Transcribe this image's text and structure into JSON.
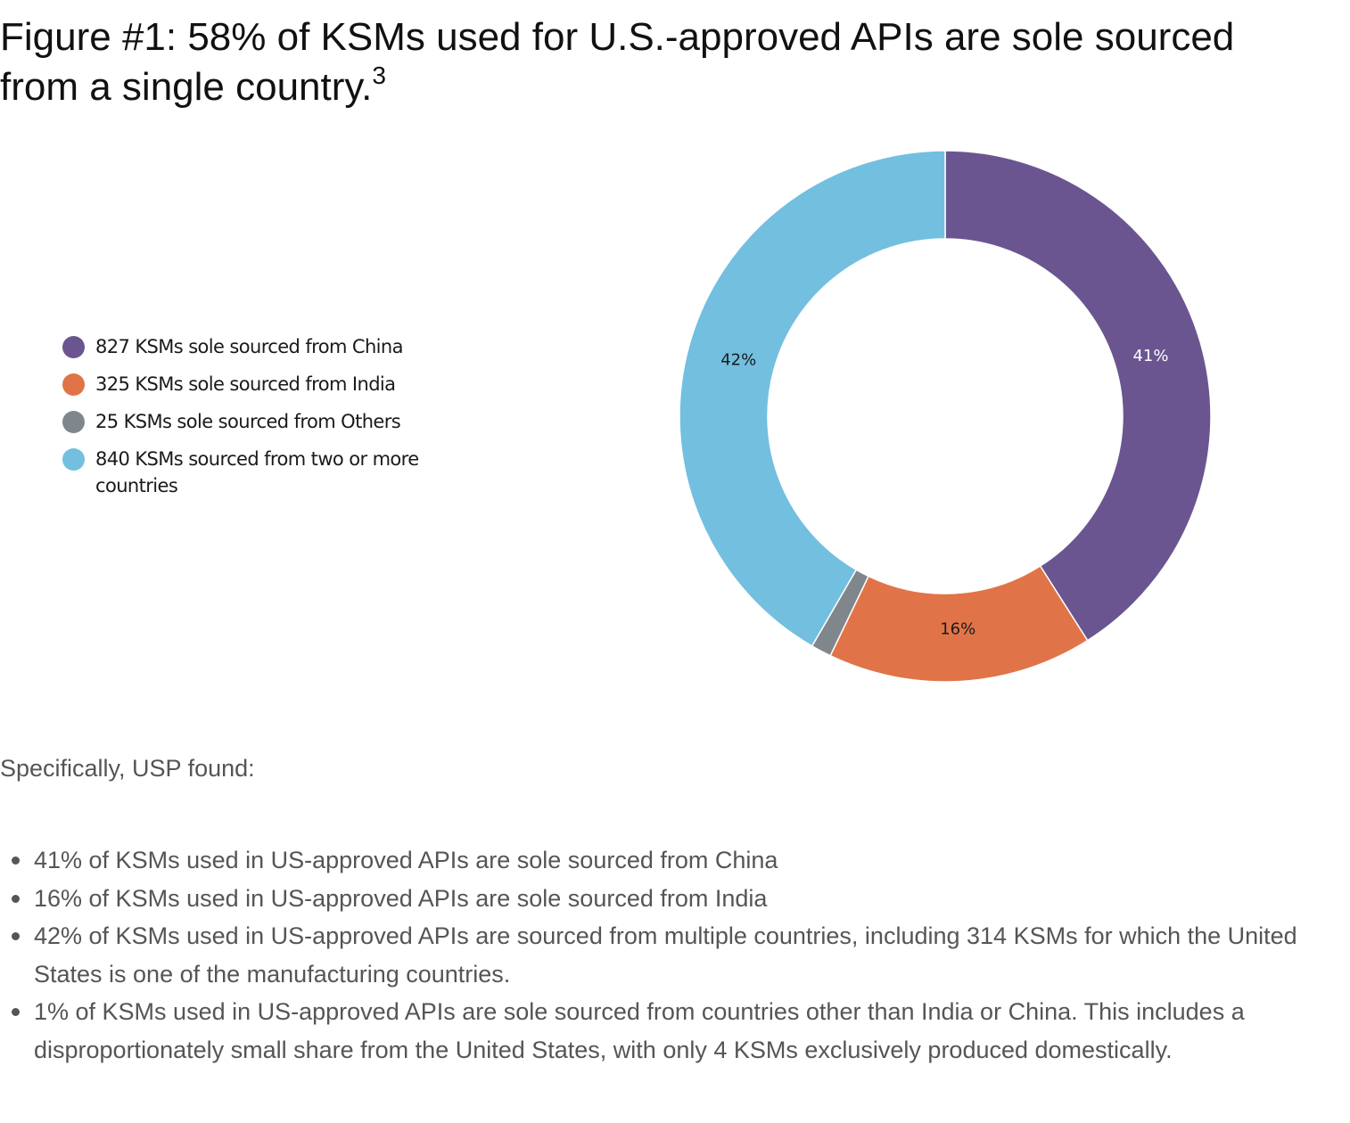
{
  "figure": {
    "title": "Figure #1: 58% of KSMs used for U.S.-approved APIs are sole sourced from a single country.",
    "footnote": "3"
  },
  "chart_data": {
    "type": "pie",
    "style": "donut",
    "title": "Figure #1: 58% of KSMs used for U.S.-approved APIs are sole sourced from a single country.",
    "legend_position": "left",
    "slices": [
      {
        "name": "827 KSMs sole sourced from China",
        "value": 827,
        "percent_label": "41%",
        "color": "#6a5590",
        "label_color": "#ffffff",
        "show_label": true
      },
      {
        "name": "325 KSMs sole sourced from India",
        "value": 325,
        "percent_label": "16%",
        "color": "#e07448",
        "label_color": "#1a1a1a",
        "show_label": true
      },
      {
        "name": "25 KSMs sole sourced from Others",
        "value": 25,
        "percent_label": "1%",
        "color": "#7f878d",
        "label_color": "#1a1a1a",
        "show_label": false
      },
      {
        "name": "840 KSMs sourced from two or more countries",
        "value": 840,
        "percent_label": "42%",
        "color": "#72bfe0",
        "label_color": "#1a1a1a",
        "show_label": true
      }
    ]
  },
  "body": {
    "intro": "Specifically, USP found:",
    "findings": [
      "41% of KSMs used in US-approved APIs are sole sourced from China",
      "16% of KSMs used in US-approved APIs are sole sourced from India",
      "42% of KSMs used in US-approved APIs are sourced from multiple countries, including 314 KSMs for which the United States is one of the manufacturing countries.",
      "1% of KSMs used in US-approved APIs are sole sourced from countries other than India or China. This includes a disproportionately small share from the United States, with only 4 KSMs exclusively produced domestically."
    ]
  }
}
